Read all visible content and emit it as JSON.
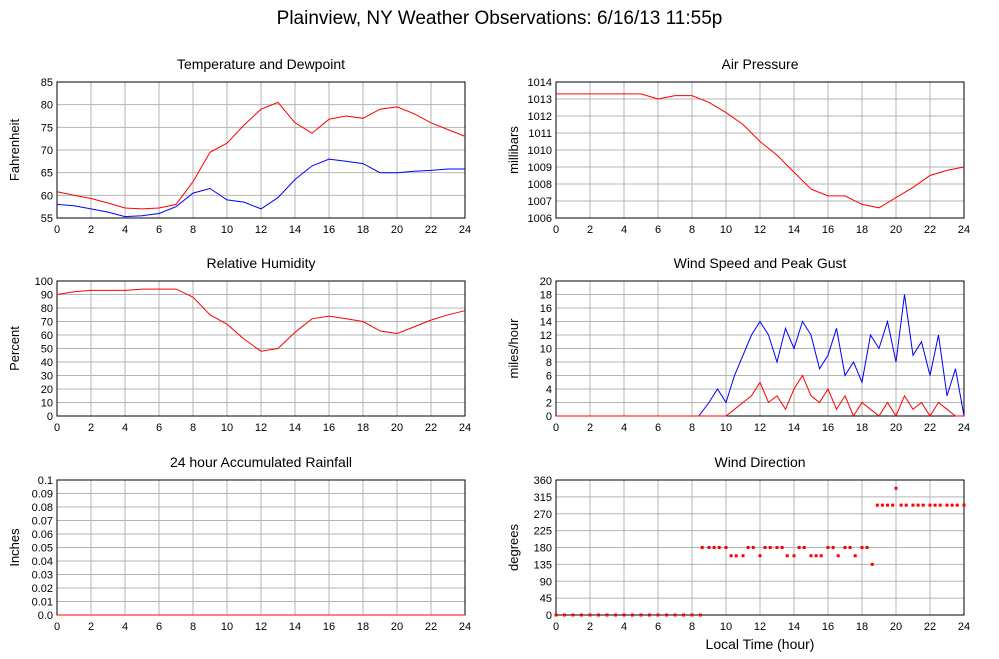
{
  "page_title": "Plainview, NY Weather Observations: 6/16/13 11:55p",
  "colors": {
    "red": "#ff0000",
    "blue": "#0000ff",
    "grid": "#b4b4b4"
  },
  "chart_data": [
    {
      "id": "temp",
      "type": "line",
      "title": "Temperature and Dewpoint",
      "ylabel": "Fahrenheit",
      "xlabel": "",
      "xlim": [
        0,
        24
      ],
      "ylim": [
        55,
        85
      ],
      "xticks": [
        0,
        2,
        4,
        6,
        8,
        10,
        12,
        14,
        16,
        18,
        20,
        22,
        24
      ],
      "yticks": [
        "55",
        "60",
        "65",
        "70",
        "75",
        "80",
        "85"
      ],
      "series": [
        {
          "color": "red",
          "x": [
            0,
            1,
            2,
            3,
            4,
            5,
            6,
            7,
            8,
            9,
            10,
            11,
            12,
            13,
            14,
            15,
            16,
            17,
            18,
            19,
            20,
            21,
            22,
            23,
            24
          ],
          "values": [
            60.8,
            60,
            59.3,
            58.3,
            57.2,
            57,
            57.2,
            58,
            63,
            69.5,
            71.5,
            75.5,
            79,
            80.5,
            76,
            73.7,
            76.8,
            77.5,
            77,
            79,
            79.5,
            78,
            76,
            74.5,
            73
          ]
        },
        {
          "color": "blue",
          "x": [
            0,
            1,
            2,
            3,
            4,
            5,
            6,
            7,
            8,
            9,
            10,
            11,
            12,
            13,
            14,
            15,
            16,
            17,
            18,
            19,
            20,
            21,
            22,
            23,
            24
          ],
          "values": [
            58,
            57.7,
            57,
            56.3,
            55.3,
            55.5,
            56,
            57.5,
            60.5,
            61.5,
            59,
            58.5,
            57,
            59.5,
            63.5,
            66.5,
            68,
            67.5,
            67,
            65,
            65,
            65.3,
            65.5,
            65.8,
            65.8
          ]
        }
      ]
    },
    {
      "id": "pressure",
      "type": "line",
      "title": "Air Pressure",
      "ylabel": "millibars",
      "xlabel": "",
      "xlim": [
        0,
        24
      ],
      "ylim": [
        1006,
        1014
      ],
      "xticks": [
        0,
        2,
        4,
        6,
        8,
        10,
        12,
        14,
        16,
        18,
        20,
        22,
        24
      ],
      "yticks": [
        "1006",
        "1007",
        "1008",
        "1009",
        "1010",
        "1011",
        "1012",
        "1013",
        "1014"
      ],
      "series": [
        {
          "color": "red",
          "x": [
            0,
            1,
            2,
            3,
            4,
            5,
            6,
            7,
            8,
            9,
            10,
            11,
            12,
            13,
            14,
            15,
            16,
            17,
            18,
            19,
            20,
            21,
            22,
            23,
            24
          ],
          "values": [
            1013.3,
            1013.3,
            1013.3,
            1013.3,
            1013.3,
            1013.3,
            1013,
            1013.2,
            1013.2,
            1012.8,
            1012.2,
            1011.5,
            1010.5,
            1009.7,
            1008.7,
            1007.7,
            1007.3,
            1007.3,
            1006.8,
            1006.6,
            1007.2,
            1007.8,
            1008.5,
            1008.8,
            1009
          ]
        }
      ]
    },
    {
      "id": "humidity",
      "type": "line",
      "title": "Relative Humidity",
      "ylabel": "Percent",
      "xlabel": "",
      "xlim": [
        0,
        24
      ],
      "ylim": [
        0,
        100
      ],
      "xticks": [
        0,
        2,
        4,
        6,
        8,
        10,
        12,
        14,
        16,
        18,
        20,
        22,
        24
      ],
      "yticks": [
        "0",
        "10",
        "20",
        "30",
        "40",
        "50",
        "60",
        "70",
        "80",
        "90",
        "100"
      ],
      "series": [
        {
          "color": "red",
          "x": [
            0,
            1,
            2,
            3,
            4,
            5,
            6,
            7,
            8,
            9,
            10,
            11,
            12,
            13,
            14,
            15,
            16,
            17,
            18,
            19,
            20,
            21,
            22,
            23,
            24
          ],
          "values": [
            90,
            92,
            93,
            93,
            93,
            94,
            94,
            94,
            88,
            75,
            68,
            57,
            48,
            50,
            62,
            72,
            74,
            72,
            70,
            63,
            61,
            66,
            71,
            75,
            78
          ]
        }
      ]
    },
    {
      "id": "wind",
      "type": "line",
      "title": "Wind Speed and Peak Gust",
      "ylabel": "miles/hour",
      "xlabel": "",
      "xlim": [
        0,
        24
      ],
      "ylim": [
        0,
        20
      ],
      "xticks": [
        0,
        2,
        4,
        6,
        8,
        10,
        12,
        14,
        16,
        18,
        20,
        22,
        24
      ],
      "yticks": [
        "0",
        "2",
        "4",
        "6",
        "8",
        "10",
        "12",
        "14",
        "16",
        "18",
        "20"
      ],
      "series": [
        {
          "color": "blue",
          "x": [
            0,
            8.4,
            9,
            9.5,
            10,
            10.5,
            11,
            11.5,
            12,
            12.5,
            13,
            13.5,
            14,
            14.5,
            15,
            15.5,
            16,
            16.5,
            17,
            17.5,
            18,
            18.5,
            19,
            19.5,
            20,
            20.5,
            21,
            21.5,
            22,
            22.5,
            23,
            23.5,
            24
          ],
          "values": [
            0,
            0,
            2,
            4,
            2,
            6,
            9,
            12,
            14,
            12,
            8,
            13,
            10,
            14,
            12,
            7,
            9,
            13,
            6,
            8,
            5,
            12,
            10,
            14,
            8,
            18,
            9,
            11,
            6,
            12,
            3,
            7,
            0
          ]
        },
        {
          "color": "red",
          "x": [
            0,
            10,
            10.5,
            11,
            11.5,
            12,
            12.5,
            13,
            13.5,
            14,
            14.5,
            15,
            15.5,
            16,
            16.5,
            17,
            17.5,
            18,
            18.5,
            19,
            19.5,
            20,
            20.5,
            21,
            21.5,
            22,
            22.5,
            23,
            23.5,
            24
          ],
          "values": [
            0,
            0,
            1,
            2,
            3,
            5,
            2,
            3,
            1,
            4,
            6,
            3,
            2,
            4,
            1,
            3,
            0,
            2,
            1,
            0,
            2,
            0,
            3,
            1,
            2,
            0,
            2,
            1,
            0,
            0
          ]
        }
      ]
    },
    {
      "id": "rain",
      "type": "line",
      "title": "24 hour Accumulated Rainfall",
      "ylabel": "Inches",
      "xlabel": "",
      "xlim": [
        0,
        24
      ],
      "ylim": [
        0,
        0.1
      ],
      "xticks": [
        0,
        2,
        4,
        6,
        8,
        10,
        12,
        14,
        16,
        18,
        20,
        22,
        24
      ],
      "yticks": [
        "0.0",
        "0.01",
        "0.02",
        "0.03",
        "0.04",
        "0.05",
        "0.06",
        "0.07",
        "0.08",
        "0.09",
        "0.1"
      ],
      "series": [
        {
          "color": "red",
          "x": [
            0,
            24
          ],
          "values": [
            0,
            0
          ]
        }
      ]
    },
    {
      "id": "winddir",
      "type": "scatter",
      "title": "Wind Direction",
      "ylabel": "degrees",
      "xlabel": "Local Time (hour)",
      "xlim": [
        0,
        24
      ],
      "ylim": [
        0,
        360
      ],
      "xticks": [
        0,
        2,
        4,
        6,
        8,
        10,
        12,
        14,
        16,
        18,
        20,
        22,
        24
      ],
      "yticks": [
        "0",
        "45",
        "90",
        "135",
        "180",
        "225",
        "270",
        "315",
        "360"
      ],
      "series": [
        {
          "color": "red",
          "x": [
            0,
            0.5,
            1,
            1.5,
            2,
            2.5,
            3,
            3.5,
            4,
            4.5,
            5,
            5.5,
            6,
            6.5,
            7,
            7.5,
            8,
            8.5,
            8.6,
            9,
            9.3,
            9.6,
            10,
            10.3,
            10.6,
            11,
            11.3,
            11.6,
            12,
            12.3,
            12.6,
            13,
            13.3,
            13.6,
            14,
            14.3,
            14.6,
            15,
            15.3,
            15.6,
            16,
            16.3,
            16.6,
            17,
            17.3,
            17.6,
            18,
            18.3,
            18.6,
            18.9,
            19.2,
            19.5,
            19.8,
            20,
            20.3,
            20.6,
            21,
            21.3,
            21.6,
            22,
            22.3,
            22.6,
            23,
            23.3,
            23.6,
            24
          ],
          "values": [
            0,
            0,
            0,
            0,
            0,
            0,
            0,
            0,
            0,
            0,
            0,
            0,
            0,
            0,
            0,
            0,
            0,
            0,
            180,
            180,
            180,
            180,
            180,
            158,
            158,
            158,
            180,
            180,
            158,
            180,
            180,
            180,
            180,
            158,
            158,
            180,
            180,
            158,
            158,
            158,
            180,
            180,
            158,
            180,
            180,
            158,
            180,
            180,
            135,
            293,
            293,
            293,
            293,
            338,
            293,
            293,
            293,
            293,
            293,
            293,
            293,
            293,
            293,
            293,
            293,
            293
          ]
        }
      ]
    }
  ]
}
